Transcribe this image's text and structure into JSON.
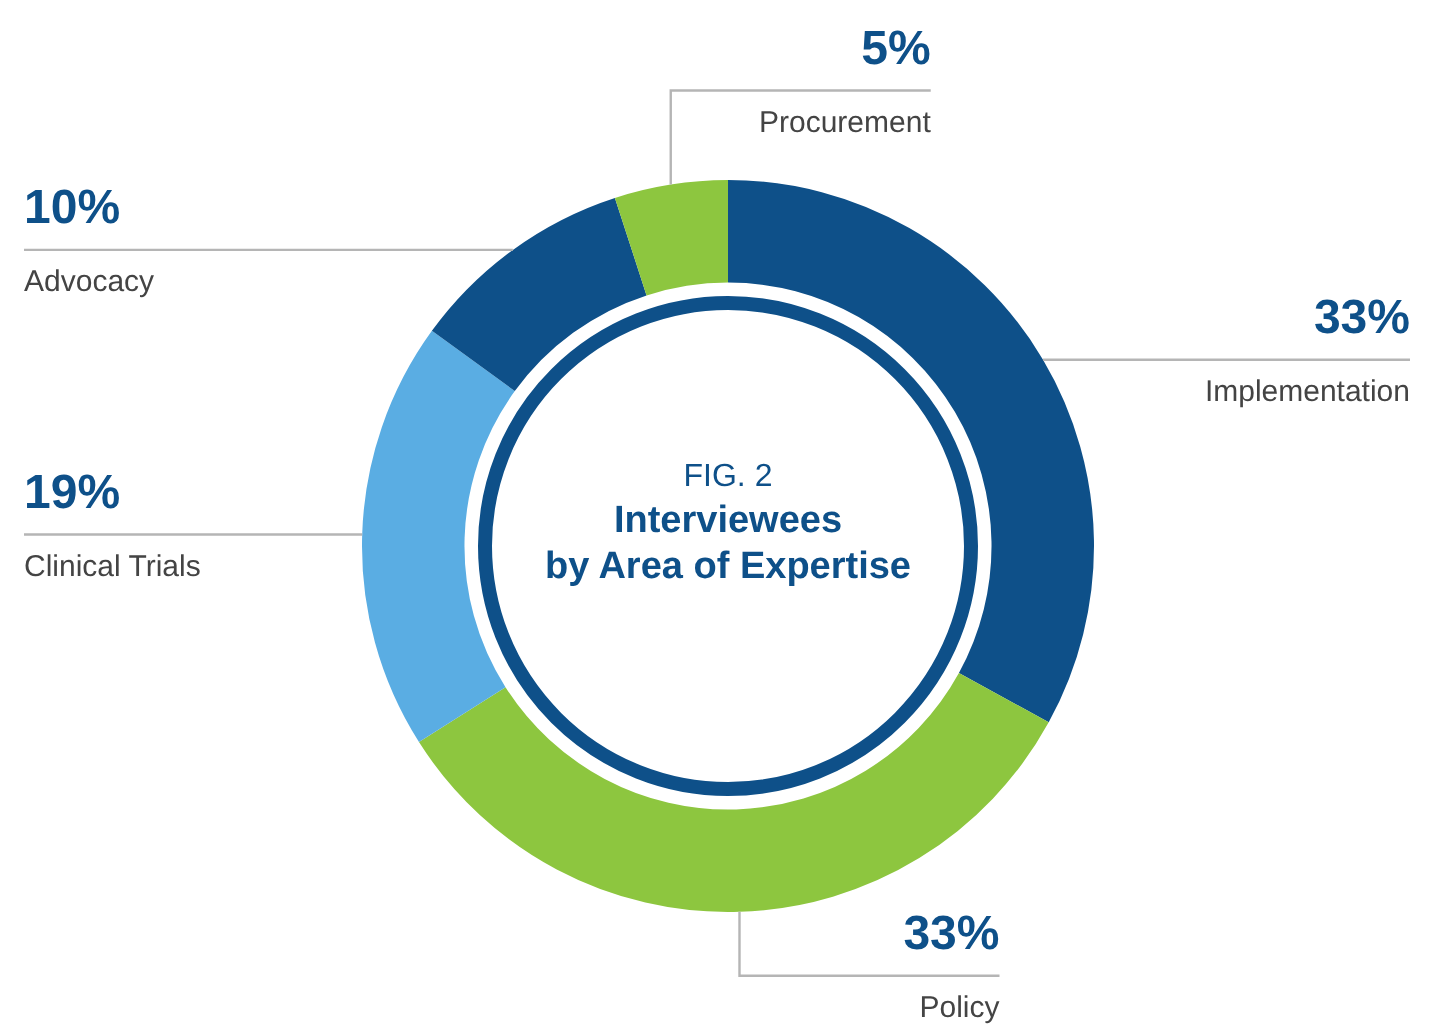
{
  "chart_data": {
    "type": "donut",
    "title": "Interviewees\nby Area of Expertise",
    "annotations": [
      "FIG. 2"
    ],
    "categories": [
      "Implementation",
      "Policy",
      "Clinical Trials",
      "Advocacy",
      "Procurement"
    ],
    "values": [
      33,
      33,
      19,
      10,
      5
    ],
    "value_labels": [
      "33%",
      "33%",
      "19%",
      "10%",
      "5%"
    ],
    "colors": [
      "#0e5089",
      "#8dc63f",
      "#5aade3",
      "#0e5089",
      "#8dc63f"
    ],
    "legend": false
  }
}
